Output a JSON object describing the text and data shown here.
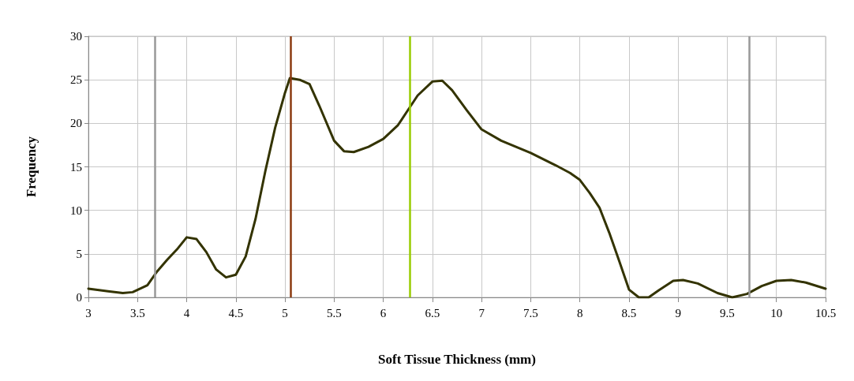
{
  "chart_data": {
    "type": "line",
    "xlabel": "Soft Tissue Thickness (mm)",
    "ylabel": "Frequency",
    "x": [
      3,
      3.2,
      3.35,
      3.45,
      3.6,
      3.7,
      3.8,
      3.9,
      4.0,
      4.1,
      4.2,
      4.3,
      4.4,
      4.5,
      4.6,
      4.7,
      4.8,
      4.9,
      5.0,
      5.05,
      5.15,
      5.25,
      5.35,
      5.5,
      5.6,
      5.7,
      5.85,
      6.0,
      6.15,
      6.25,
      6.35,
      6.5,
      6.6,
      6.7,
      6.85,
      7.0,
      7.2,
      7.5,
      7.75,
      7.9,
      8.0,
      8.1,
      8.2,
      8.3,
      8.4,
      8.5,
      8.6,
      8.7,
      8.8,
      8.95,
      9.05,
      9.2,
      9.4,
      9.55,
      9.7,
      9.85,
      10.0,
      10.15,
      10.3,
      10.5
    ],
    "series": [
      {
        "color": "#333300",
        "values": [
          1.0,
          0.7,
          0.5,
          0.6,
          1.4,
          3,
          4.3,
          5.5,
          6.9,
          6.7,
          5.2,
          3.2,
          2.3,
          2.6,
          4.7,
          9,
          14.5,
          19.5,
          23.5,
          25.2,
          25,
          24.5,
          22,
          18,
          16.8,
          16.7,
          17.3,
          18.2,
          19.8,
          21.5,
          23.2,
          24.8,
          24.9,
          23.8,
          21.5,
          19.3,
          18,
          16.6,
          15.2,
          14.3,
          13.5,
          12,
          10.3,
          7.4,
          4.2,
          0.9,
          0,
          0,
          0.8,
          1.9,
          2.0,
          1.6,
          0.5,
          0,
          0.4,
          1.3,
          1.9,
          2.0,
          1.7,
          1.0
        ]
      }
    ],
    "xlim": [
      3,
      10.5
    ],
    "xticks": [
      3,
      3.5,
      4,
      4.5,
      5,
      5.5,
      6,
      6.5,
      7,
      7.5,
      8,
      8.5,
      9,
      9.5,
      10,
      10.5
    ],
    "ylim": [
      0,
      30
    ],
    "yticks": [
      0,
      5,
      10,
      15,
      20,
      25,
      30
    ],
    "ref_lines": [
      {
        "axis": "x",
        "value": 3.68,
        "color": "#999999"
      },
      {
        "axis": "x",
        "value": 5.06,
        "color": "#8b3a0f"
      },
      {
        "axis": "x",
        "value": 6.27,
        "color": "#99cc00"
      },
      {
        "axis": "x",
        "value": 9.72,
        "color": "#999999"
      }
    ],
    "grid": true,
    "marker": "none",
    "line_style": "solid"
  }
}
